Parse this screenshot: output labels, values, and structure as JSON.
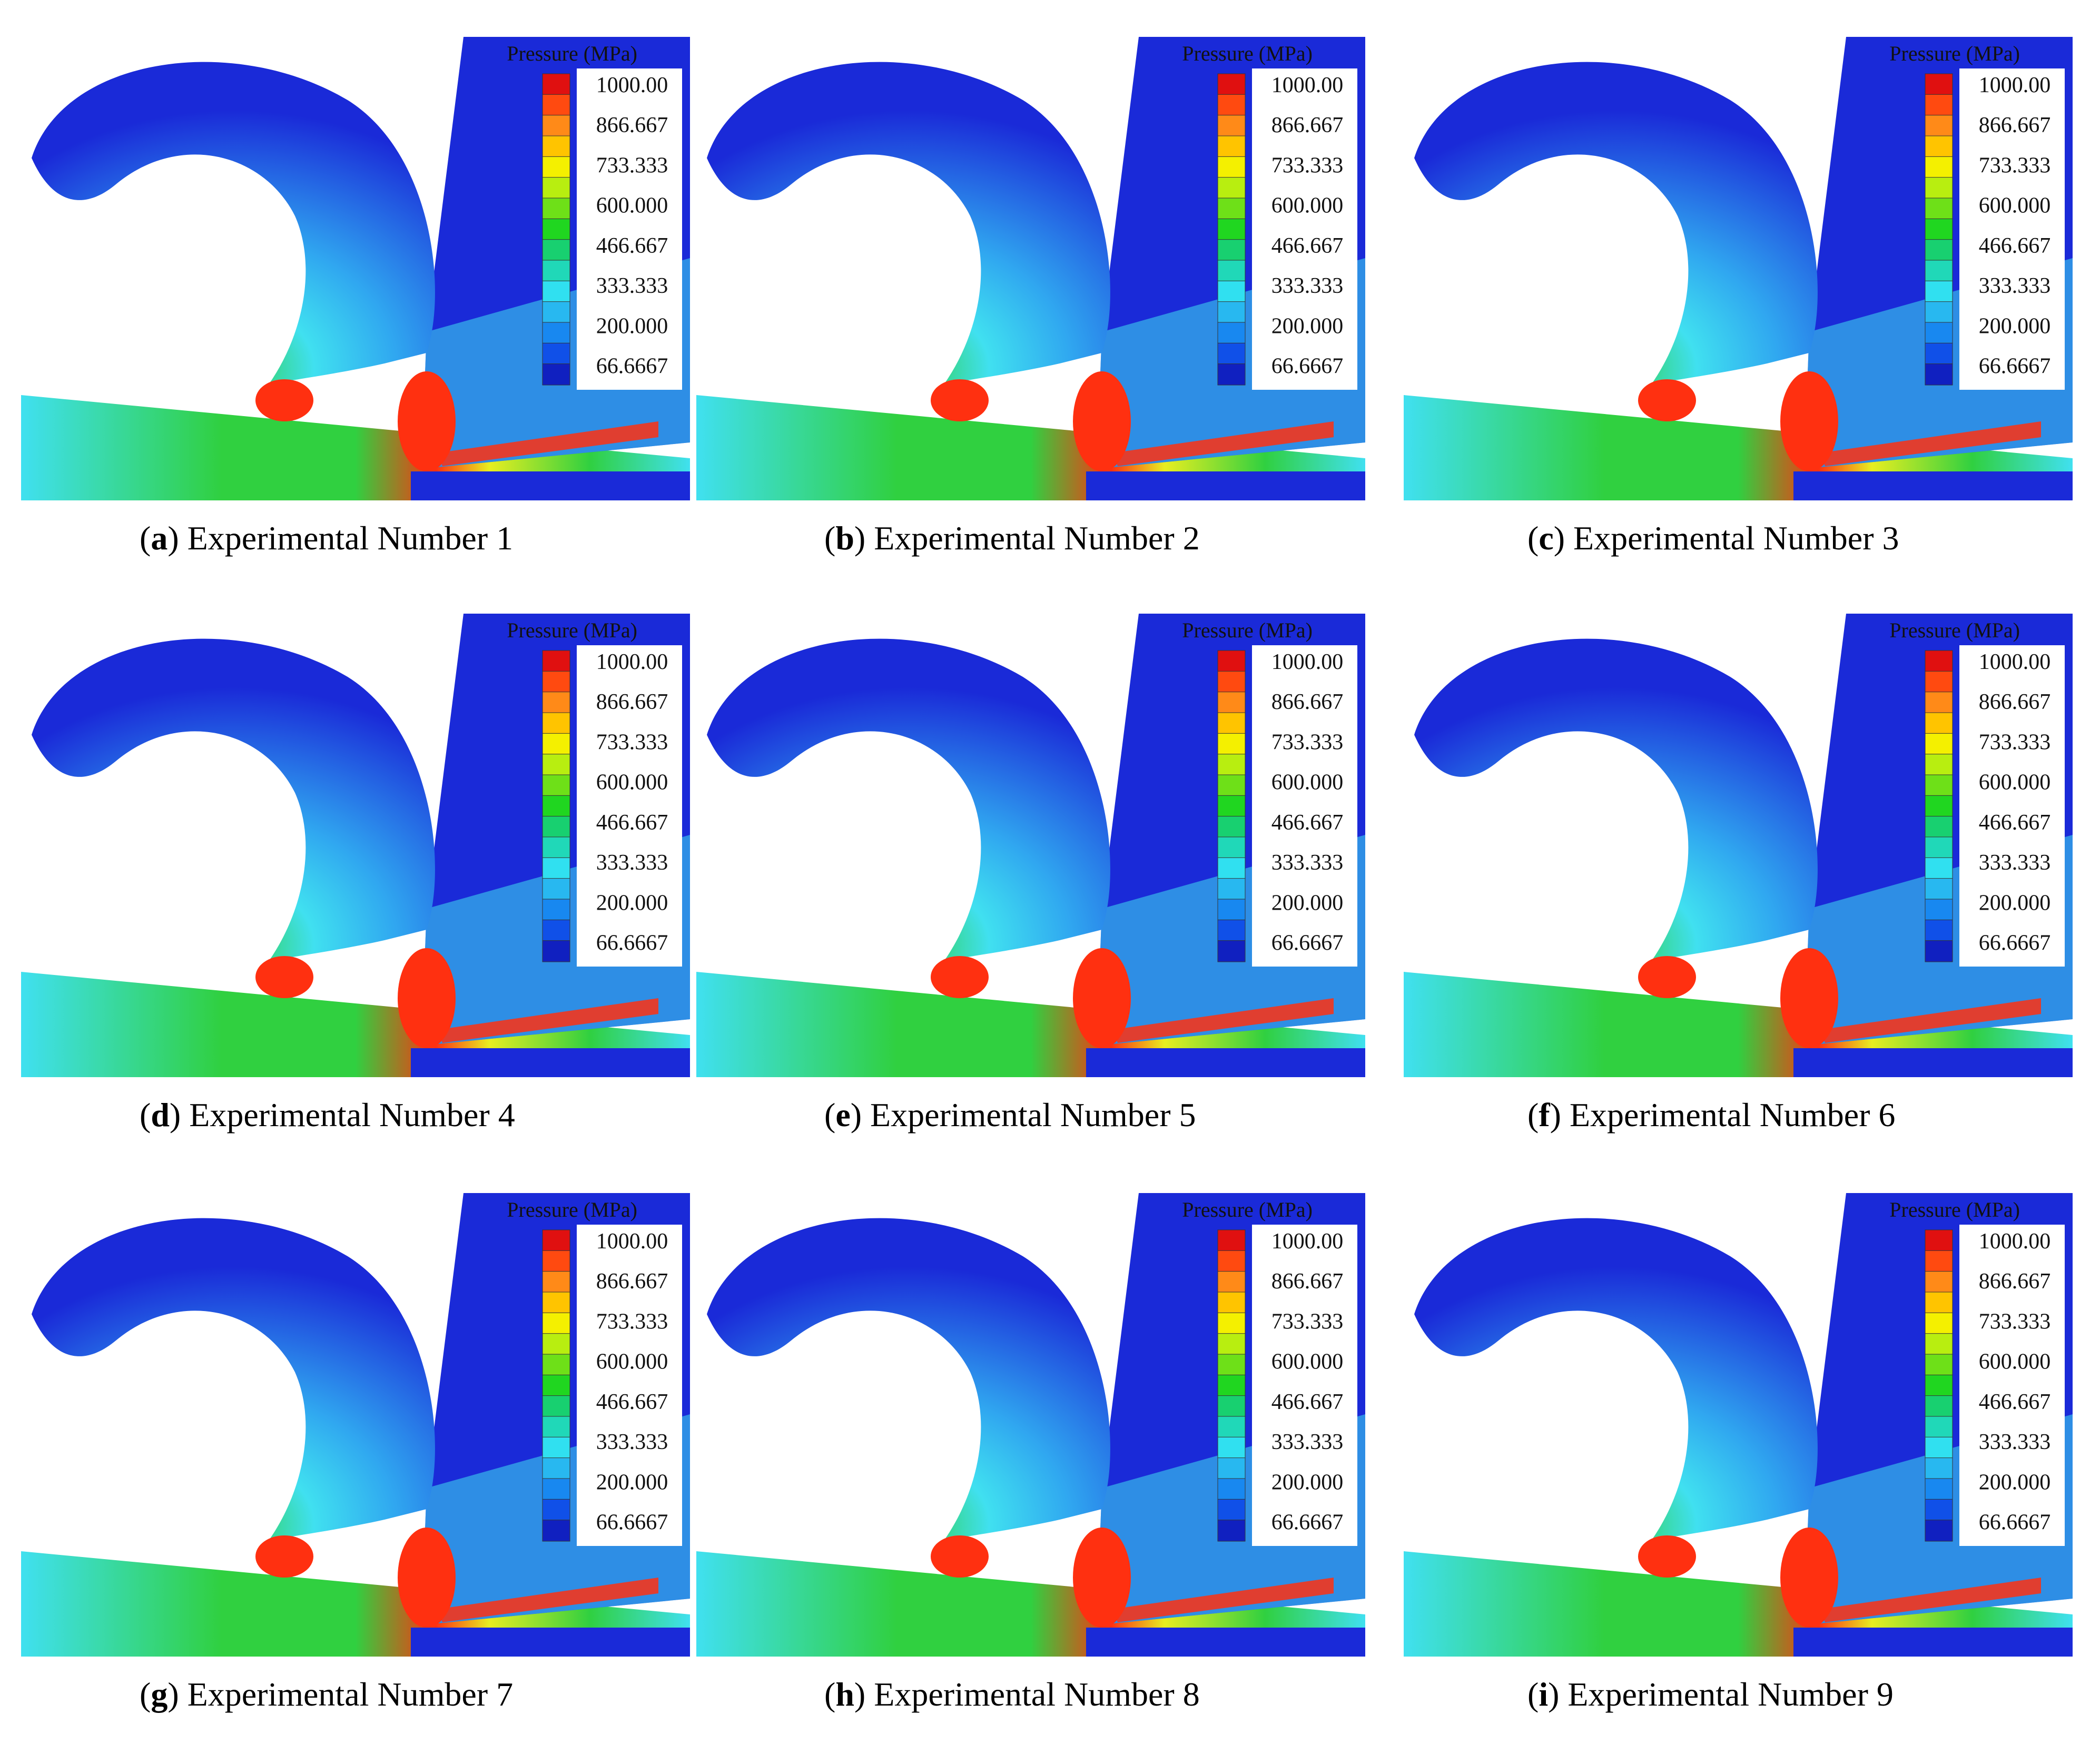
{
  "figure": {
    "colorbar_title": "Pressure (MPa)",
    "colorbar_ticks": [
      "1000.00",
      "866.667",
      "733.333",
      "600.000",
      "466.667",
      "333.333",
      "200.000",
      "66.6667"
    ],
    "colorbar_colors": [
      "#e01010",
      "#ff4a10",
      "#ff8a18",
      "#ffc400",
      "#f4f000",
      "#b8ee10",
      "#6ee018",
      "#20d620",
      "#18d070",
      "#20d8b8",
      "#30e0f0",
      "#28b8f0",
      "#1888f0",
      "#1050e8",
      "#1020c0"
    ],
    "colors": {
      "low": "#1a2ad8",
      "mid_low": "#30a8f0",
      "mid": "#40e0f0",
      "green": "#30d040",
      "yellow": "#e8ee20",
      "high": "#ff3010"
    },
    "panels": [
      {
        "letter": "a",
        "title": "Experimental Number 1"
      },
      {
        "letter": "b",
        "title": "Experimental Number 2"
      },
      {
        "letter": "c",
        "title": "Experimental Number 3"
      },
      {
        "letter": "d",
        "title": "Experimental Number 4"
      },
      {
        "letter": "e",
        "title": "Experimental Number 5"
      },
      {
        "letter": "f",
        "title": "Experimental Number 6"
      },
      {
        "letter": "g",
        "title": "Experimental Number 7"
      },
      {
        "letter": "h",
        "title": "Experimental Number 8"
      },
      {
        "letter": "i",
        "title": "Experimental Number 9"
      }
    ]
  }
}
